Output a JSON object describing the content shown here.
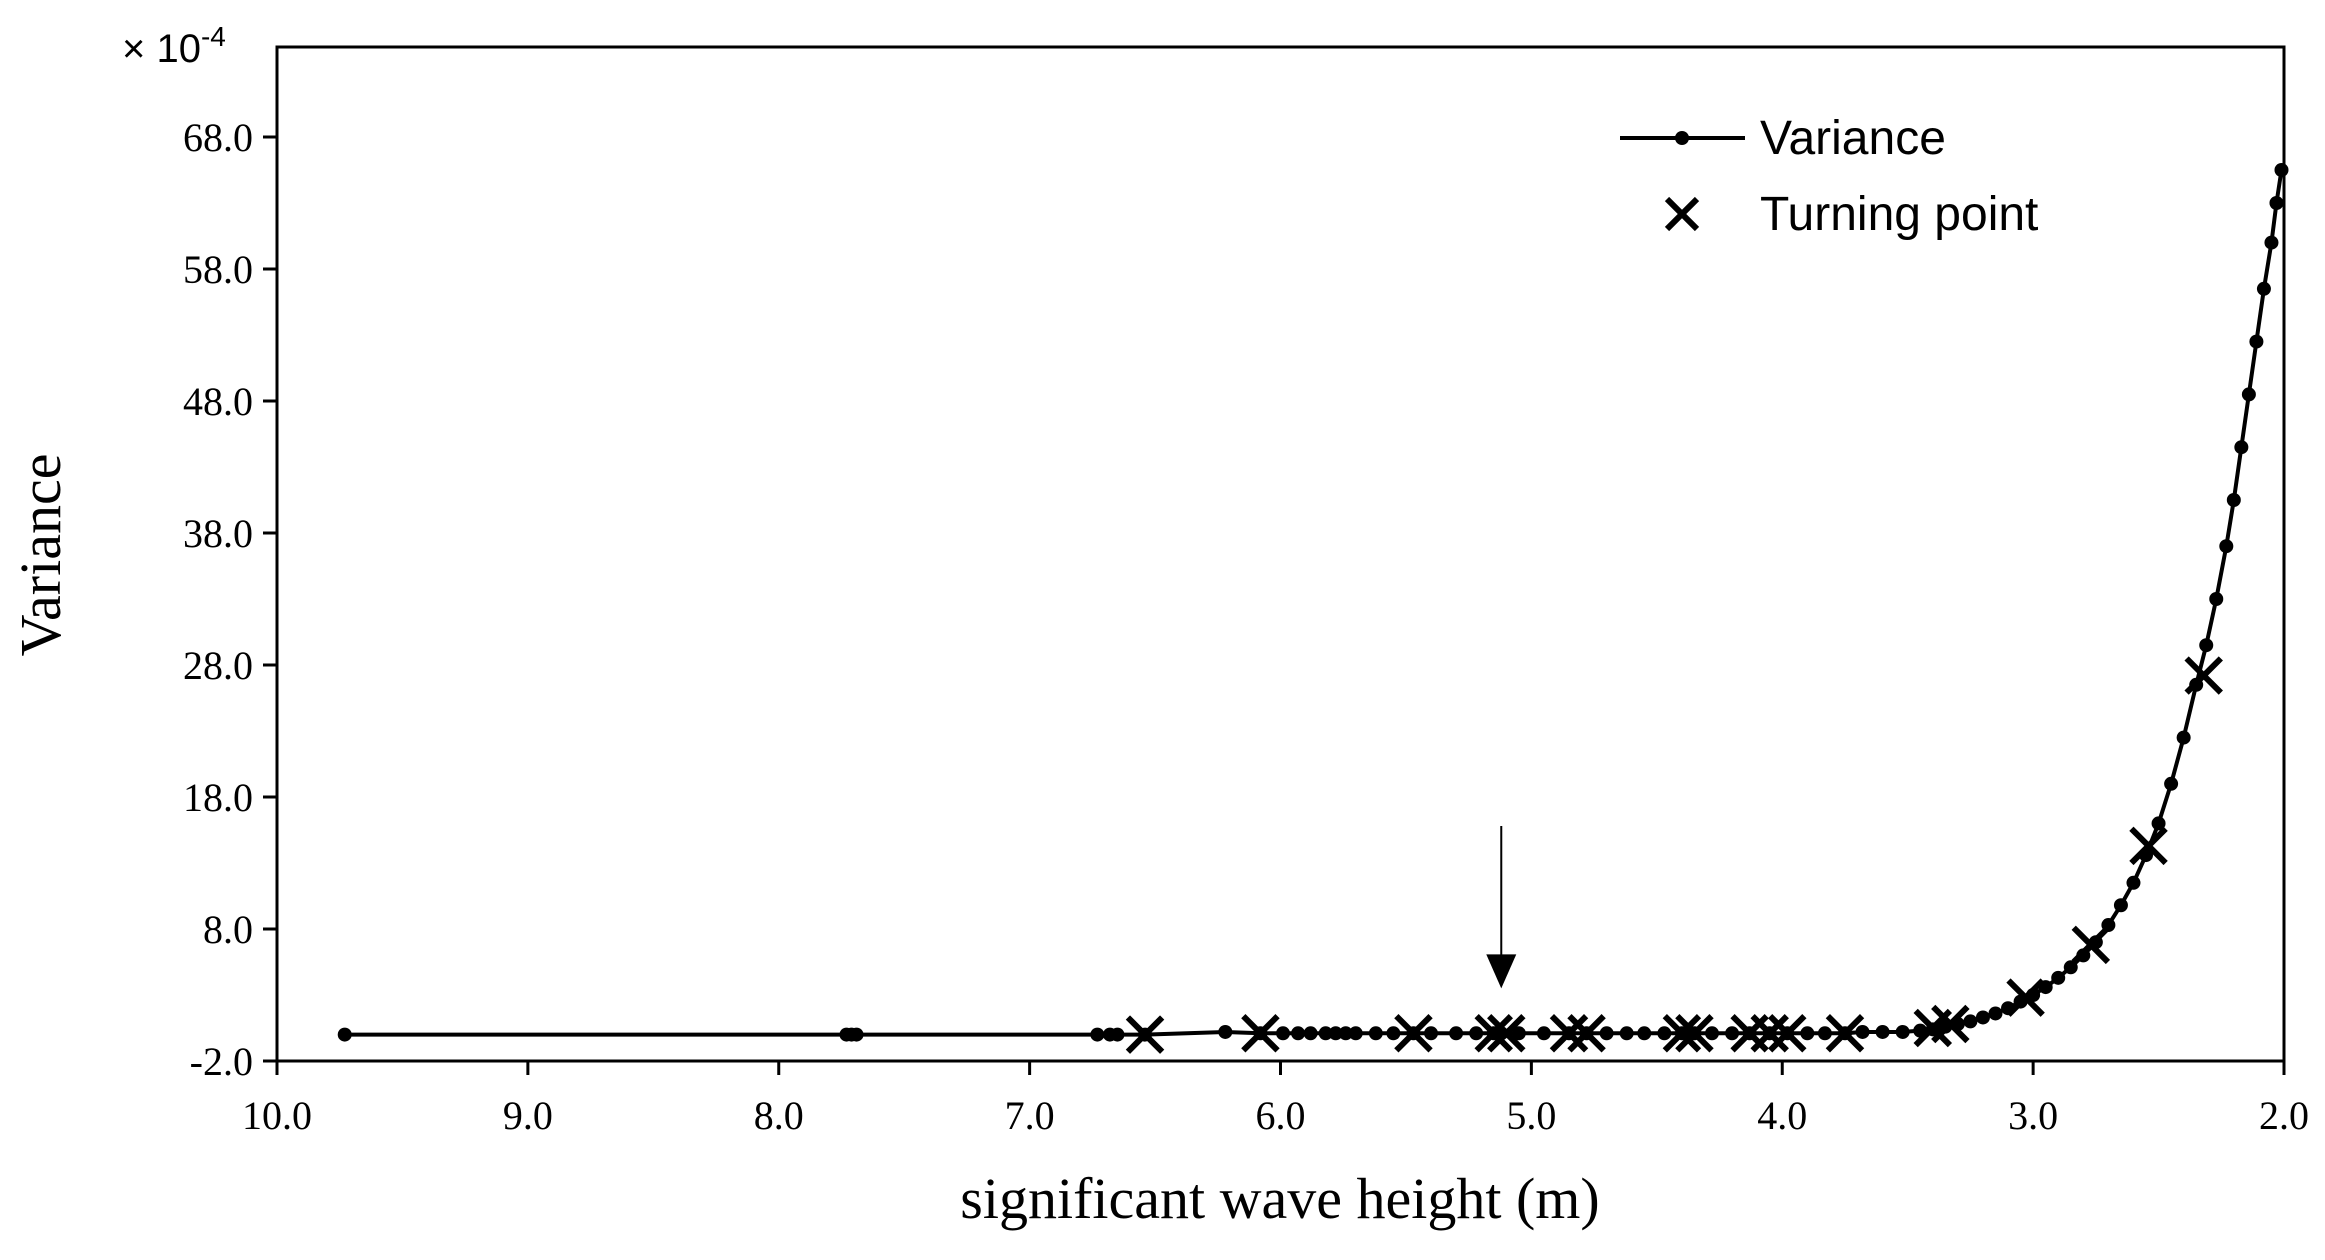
{
  "chart_data": {
    "type": "line",
    "xlabel": "significant wave height (m)",
    "ylabel": "Variance",
    "y_multiplier": "× 10",
    "y_multiplier_exp": "-4",
    "xlim": [
      10.0,
      2.0
    ],
    "ylim": [
      -2.0,
      68.0
    ],
    "x_reversed": true,
    "grid": false,
    "legend_position": "top-right",
    "x_ticks": [
      10.0,
      9.0,
      8.0,
      7.0,
      6.0,
      5.0,
      4.0,
      3.0,
      2.0
    ],
    "x_tick_labels": [
      "10.0",
      "9.0",
      "8.0",
      "7.0",
      "6.0",
      "5.0",
      "4.0",
      "3.0",
      "2.0"
    ],
    "y_ticks": [
      -2.0,
      8.0,
      18.0,
      28.0,
      38.0,
      48.0,
      58.0,
      68.0
    ],
    "y_tick_labels": [
      "-2.0",
      "8.0",
      "18.0",
      "28.0",
      "38.0",
      "48.0",
      "58.0",
      "68.0"
    ],
    "series": [
      {
        "name": "Variance",
        "marker": "dot",
        "x": [
          9.73,
          7.73,
          7.71,
          7.69,
          6.73,
          6.68,
          6.65,
          6.54,
          6.22,
          6.08,
          5.99,
          5.93,
          5.88,
          5.82,
          5.78,
          5.74,
          5.7,
          5.62,
          5.55,
          5.47,
          5.4,
          5.3,
          5.22,
          5.15,
          5.12,
          5.05,
          4.95,
          4.85,
          4.78,
          4.7,
          4.62,
          4.55,
          4.47,
          4.4,
          4.35,
          4.28,
          4.2,
          4.13,
          4.05,
          3.98,
          3.9,
          3.83,
          3.75,
          3.68,
          3.6,
          3.52,
          3.45,
          3.4,
          3.35,
          3.3,
          3.25,
          3.2,
          3.15,
          3.1,
          3.05,
          3.0,
          2.95,
          2.9,
          2.85,
          2.8,
          2.75,
          2.7,
          2.65,
          2.6,
          2.55,
          2.5,
          2.45,
          2.4,
          2.35,
          2.31,
          2.27,
          2.23,
          2.2,
          2.17,
          2.14,
          2.11,
          2.08,
          2.05,
          2.03,
          2.01
        ],
        "y": [
          0.0,
          0.0,
          0.0,
          0.0,
          0.0,
          0.0,
          0.0,
          0.0,
          0.2,
          0.1,
          0.1,
          0.1,
          0.1,
          0.1,
          0.1,
          0.1,
          0.1,
          0.1,
          0.1,
          0.1,
          0.1,
          0.1,
          0.1,
          0.1,
          0.1,
          0.1,
          0.1,
          0.1,
          0.1,
          0.1,
          0.1,
          0.1,
          0.1,
          0.1,
          0.1,
          0.1,
          0.1,
          0.1,
          0.1,
          0.1,
          0.1,
          0.1,
          0.1,
          0.2,
          0.2,
          0.2,
          0.3,
          0.4,
          0.6,
          0.8,
          1.0,
          1.3,
          1.6,
          2.0,
          2.5,
          3.0,
          3.6,
          4.3,
          5.1,
          6.0,
          7.0,
          8.3,
          9.8,
          11.5,
          13.6,
          16.0,
          19.0,
          22.5,
          26.5,
          29.5,
          33.0,
          37.0,
          40.5,
          44.5,
          48.5,
          52.5,
          56.5,
          60.0,
          63.0,
          65.5
        ]
      },
      {
        "name": "Turning point",
        "marker": "x",
        "x": [
          6.54,
          6.08,
          5.47,
          5.15,
          5.1,
          4.85,
          4.78,
          4.4,
          4.35,
          4.13,
          4.05,
          3.98,
          3.75,
          3.4,
          3.33,
          3.03,
          2.77,
          2.54,
          2.32
        ],
        "y": [
          0.0,
          0.1,
          0.1,
          0.1,
          0.1,
          0.1,
          0.1,
          0.1,
          0.1,
          0.1,
          0.1,
          0.1,
          0.1,
          0.5,
          0.8,
          2.8,
          6.8,
          14.3,
          27.2
        ]
      }
    ],
    "annotations": [
      {
        "type": "arrow",
        "x": 5.12,
        "y_from": 15.8,
        "y_to": 3.5
      }
    ]
  }
}
